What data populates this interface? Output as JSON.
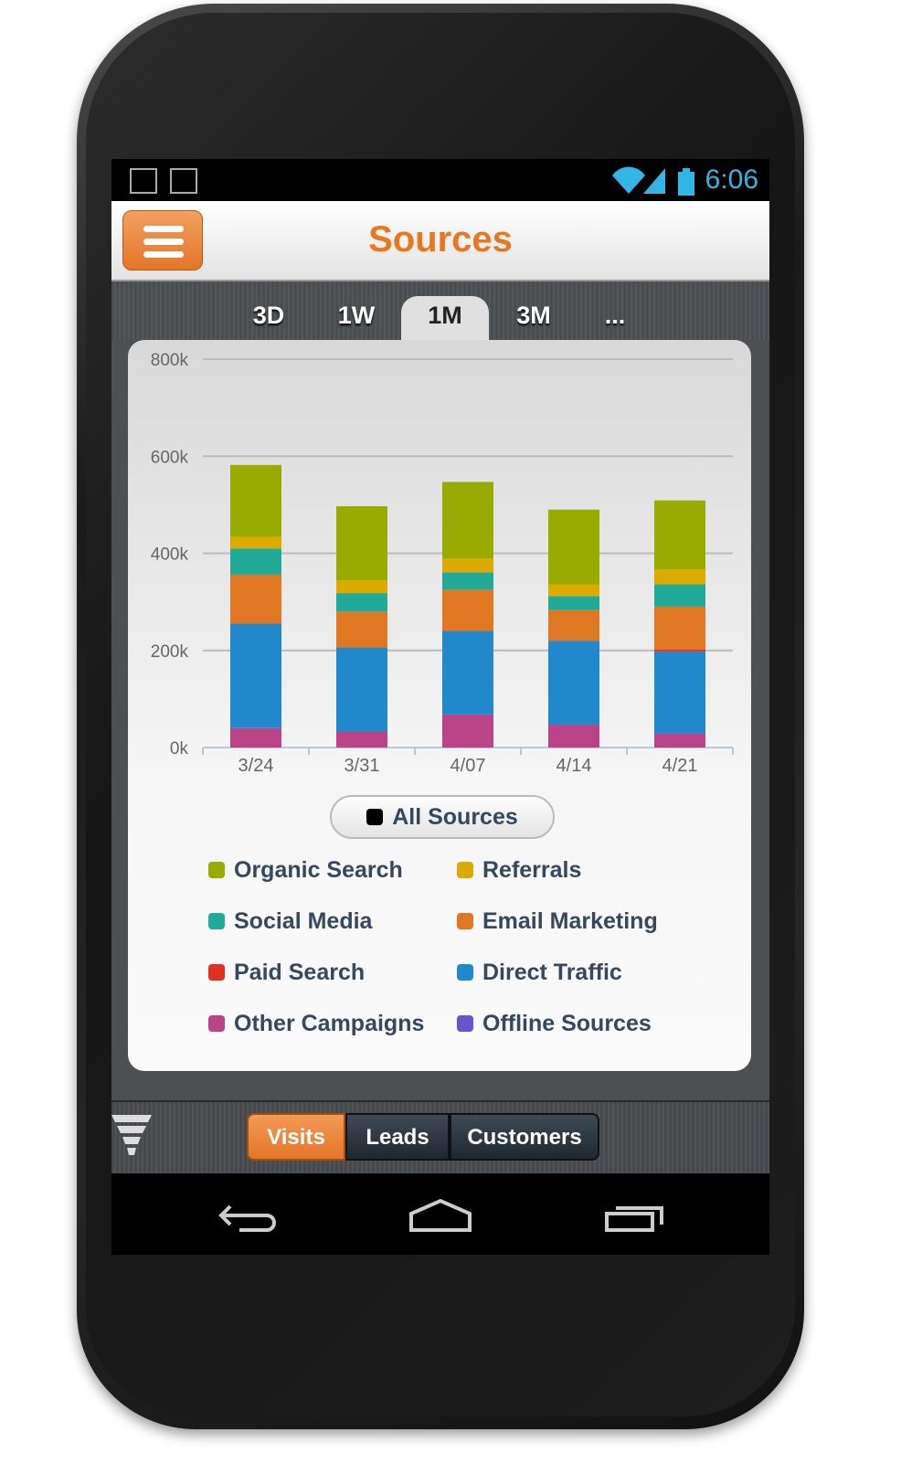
{
  "status_bar": {
    "time": "6:06",
    "icons": [
      "gmail-icon",
      "gallery-icon",
      "wifi-icon",
      "signal-icon",
      "battery-icon"
    ]
  },
  "header": {
    "title": "Sources",
    "menu_icon": "hamburger-icon"
  },
  "range_tabs": [
    {
      "label": "3D"
    },
    {
      "label": "1W"
    },
    {
      "label": "1M",
      "active": true
    },
    {
      "label": "3M"
    },
    {
      "label": "..."
    }
  ],
  "chart_data": {
    "type": "bar",
    "stacked": true,
    "categories": [
      "3/24",
      "3/31",
      "4/07",
      "4/14",
      "4/21"
    ],
    "yticks": [
      "0k",
      "200k",
      "400k",
      "600k",
      "800k"
    ],
    "ylim": [
      0,
      800000
    ],
    "grid": true,
    "series": [
      {
        "name": "Other Campaigns",
        "color": "#bb4488",
        "values": [
          40000,
          33000,
          68000,
          47000,
          29000
        ]
      },
      {
        "name": "Direct Traffic",
        "color": "#2288cc",
        "values": [
          215000,
          173000,
          172000,
          173000,
          169000
        ]
      },
      {
        "name": "Paid Search",
        "color": "#e03020",
        "values": [
          0,
          0,
          0,
          0,
          4000
        ]
      },
      {
        "name": "Email Marketing",
        "color": "#e07722",
        "values": [
          101000,
          74000,
          85000,
          63000,
          88000
        ]
      },
      {
        "name": "Social Media",
        "color": "#22aa99",
        "values": [
          54000,
          38000,
          36000,
          29000,
          46000
        ]
      },
      {
        "name": "Referrals",
        "color": "#ddaa00",
        "values": [
          24000,
          26000,
          28000,
          24000,
          31000
        ]
      },
      {
        "name": "Organic Search",
        "color": "#99aa00",
        "values": [
          148000,
          153000,
          158000,
          154000,
          142000
        ]
      },
      {
        "name": "Offline Sources",
        "color": "#6655cc",
        "values": [
          0,
          0,
          0,
          0,
          0
        ]
      }
    ]
  },
  "filter": {
    "label": "All Sources"
  },
  "legend": [
    {
      "label": "Organic Search",
      "color": "#99aa00"
    },
    {
      "label": "Referrals",
      "color": "#ddaa00"
    },
    {
      "label": "Social Media",
      "color": "#22aa99"
    },
    {
      "label": "Email Marketing",
      "color": "#e07722"
    },
    {
      "label": "Paid Search",
      "color": "#e03020"
    },
    {
      "label": "Direct Traffic",
      "color": "#2288cc"
    },
    {
      "label": "Other Campaigns",
      "color": "#bb4488"
    },
    {
      "label": "Offline Sources",
      "color": "#6655cc"
    }
  ],
  "bottom_tabs": [
    {
      "label": "Visits",
      "active": true
    },
    {
      "label": "Leads"
    },
    {
      "label": "Customers"
    }
  ],
  "nav": {
    "back": "back-icon",
    "home": "home-icon",
    "recents": "recents-icon"
  }
}
